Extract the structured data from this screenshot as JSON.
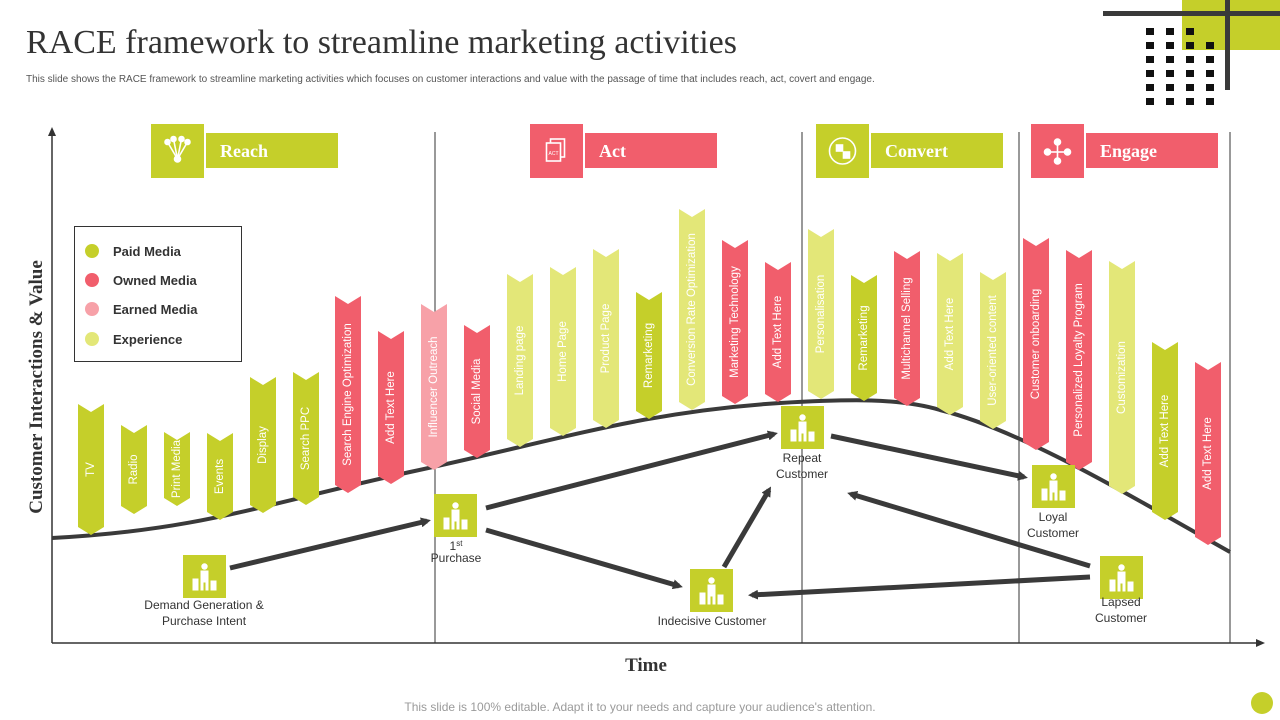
{
  "title": "RACE framework to streamline marketing activities",
  "subtitle": "This slide shows the RACE framework to streamline marketing activities which focuses on customer interactions and value with the passage of time that includes reach, act, covert and engage.",
  "footer": "This slide is 100% editable. Adapt it to your needs and capture your audience's attention.",
  "axes": {
    "y_label": "Customer Interactions & Value",
    "x_label": "Time"
  },
  "colors": {
    "paid": "#c5cf2a",
    "owned": "#f15e6c",
    "earned": "#f7a1a8",
    "experience": "#e3e778",
    "dark": "#3a3a3a"
  },
  "legend": [
    {
      "label": "Paid Media",
      "color": "#c5cf2a"
    },
    {
      "label": "Owned Media",
      "color": "#f15e6c"
    },
    {
      "label": "Earned Media",
      "color": "#f7a1a8"
    },
    {
      "label": "Experience",
      "color": "#e3e778"
    }
  ],
  "stages": [
    {
      "label": "Reach",
      "icon": "network-icon",
      "color": "#c5cf2a"
    },
    {
      "label": "Act",
      "icon": "documents-icon",
      "color": "#f15e6c"
    },
    {
      "label": "Convert",
      "icon": "conversion-icon",
      "color": "#c5cf2a"
    },
    {
      "label": "Engage",
      "icon": "people-network-icon",
      "color": "#f15e6c"
    }
  ],
  "channels": [
    {
      "label": "TV",
      "type": "paid"
    },
    {
      "label": "Radio",
      "type": "paid"
    },
    {
      "label": "Print Media",
      "type": "paid"
    },
    {
      "label": "Events",
      "type": "paid"
    },
    {
      "label": "Display",
      "type": "paid"
    },
    {
      "label": "Search PPC",
      "type": "paid"
    },
    {
      "label": "Search Engine Optimization",
      "type": "owned"
    },
    {
      "label": "Add Text Here",
      "type": "owned"
    },
    {
      "label": "Influencer Outreach",
      "type": "earned"
    },
    {
      "label": "Social Media",
      "type": "owned"
    },
    {
      "label": "Landing page",
      "type": "experience"
    },
    {
      "label": "Home Page",
      "type": "experience"
    },
    {
      "label": "Product Page",
      "type": "experience"
    },
    {
      "label": "Remarketing",
      "type": "paid"
    },
    {
      "label": "Conversion Rate Optimization",
      "type": "experience"
    },
    {
      "label": "Marketing Technology",
      "type": "owned"
    },
    {
      "label": "Add Text Here",
      "type": "owned"
    },
    {
      "label": "Personalisation",
      "type": "experience"
    },
    {
      "label": "Remarketing",
      "type": "paid"
    },
    {
      "label": "Multichannel Selling",
      "type": "owned"
    },
    {
      "label": "Add Text Here",
      "type": "experience"
    },
    {
      "label": "User-oriented content",
      "type": "experience"
    },
    {
      "label": "Customer onboarding",
      "type": "owned"
    },
    {
      "label": "Personalized Loyalty Program",
      "type": "owned"
    },
    {
      "label": "Customization",
      "type": "experience"
    },
    {
      "label": "Add Text Here",
      "type": "paid"
    },
    {
      "label": "Add Text Here",
      "type": "owned"
    }
  ],
  "journey_nodes": [
    {
      "label": "Demand Generation & Purchase Intent",
      "lines": [
        "Demand Generation &",
        "Purchase Intent"
      ]
    },
    {
      "label": "1st Purchase",
      "lines": [
        "1",
        "Purchase"
      ],
      "sup": "st"
    },
    {
      "label": "Indecisive Customer",
      "lines": [
        "Indecisive Customer"
      ]
    },
    {
      "label": "Repeat Customer",
      "lines": [
        "Repeat",
        "Customer"
      ]
    },
    {
      "label": "Loyal Customer",
      "lines": [
        "Loyal",
        "Customer"
      ]
    },
    {
      "label": "Lapsed Customer",
      "lines": [
        "Lapsed",
        "Customer"
      ]
    }
  ]
}
